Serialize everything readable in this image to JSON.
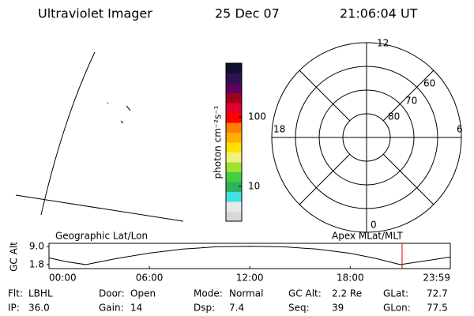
{
  "header": {
    "instrument": "Ultraviolet Imager",
    "date": "25 Dec 07",
    "time": "21:06:04 UT"
  },
  "colorbar": {
    "label": "photon cm⁻²s⁻¹",
    "scale": "log",
    "ylim": [
      3.16,
      593
    ],
    "yticks": [
      10,
      100
    ],
    "colors": [
      "#d8d8d8",
      "#e8e8e8",
      "#40e0e0",
      "#30b060",
      "#40d040",
      "#a0e030",
      "#f0f080",
      "#ffe000",
      "#ffb000",
      "#ff8000",
      "#ff0000",
      "#e00030",
      "#a00020",
      "#600060",
      "#301050",
      "#101030"
    ]
  },
  "polar": {
    "mlt_labels": [
      "12",
      "18",
      "6",
      "0"
    ],
    "lat_labels": [
      "80",
      "70",
      "60"
    ]
  },
  "altitude": {
    "title_left": "Geographic Lat/Lon",
    "title_right": "Apex MLat/MLT",
    "ylabel": "GC Alt",
    "xlim": [
      0,
      23.98
    ],
    "ylim": [
      0.2,
      10.3
    ],
    "yticks": [
      {
        "value": 9.0,
        "label": "9.0"
      },
      {
        "value": 1.8,
        "label": "1.8"
      }
    ],
    "xticks": [
      {
        "value": 0,
        "label": "00:00"
      },
      {
        "value": 6,
        "label": "06:00"
      },
      {
        "value": 12,
        "label": "12:00"
      },
      {
        "value": 18,
        "label": "18:00"
      },
      {
        "value": 23.98,
        "label": "23:59"
      }
    ],
    "x": [
      0,
      1,
      2.2,
      4,
      6,
      8,
      10,
      12,
      14,
      16,
      18,
      19.5,
      21,
      22.5,
      23.98
    ],
    "values": [
      4.5,
      3.0,
      1.8,
      4.2,
      6.4,
      8.0,
      8.9,
      9.1,
      8.9,
      8.0,
      6.3,
      4.3,
      1.8,
      3.3,
      4.8
    ],
    "marker": 21.1
  },
  "status": [
    [
      {
        "label": "Flt:",
        "value": "LBHL"
      },
      {
        "label": "Door:",
        "value": "Open"
      },
      {
        "label": "Mode:",
        "value": "Normal"
      },
      {
        "label": "GC Alt:",
        "value": "2.2 Re"
      },
      {
        "label": "GLat:",
        "value": "72.7"
      }
    ],
    [
      {
        "label": "IP:",
        "value": "36.0"
      },
      {
        "label": "Gain:",
        "value": "14"
      },
      {
        "label": "Dsp:",
        "value": "7.4"
      },
      {
        "label": "Seq:",
        "value": "39"
      },
      {
        "label": "GLon:",
        "value": "77.5"
      }
    ]
  ]
}
